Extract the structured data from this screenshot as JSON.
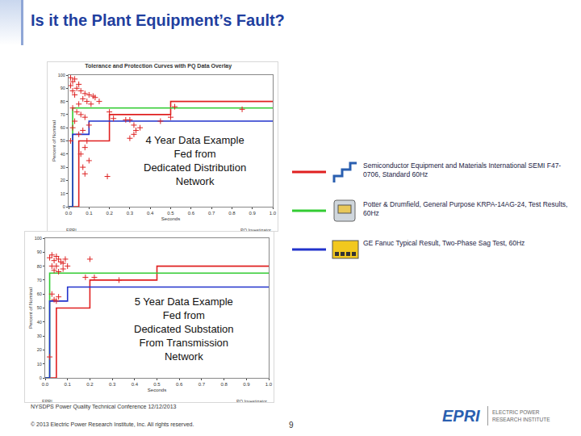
{
  "slide": {
    "title": "Is it the Plant Equipment’s Fault?",
    "footer": {
      "event": "NYSDPS Power Quality Technical Conference  12/12/2013",
      "copyright": "© 2013 Electric Power Research Institute, Inc. All rights reserved.",
      "page": "9",
      "logo": "EPRI",
      "logo_text": [
        "ELECTRIC POWER",
        "RESEARCH INSTITUTE"
      ]
    }
  },
  "chart_data": [
    {
      "type": "line",
      "title": "Tolerance and Protection Curves with PQ Data Overlay",
      "x_label": "Seconds",
      "y_label": "Percent of Nominal",
      "overlay_text": [
        "4 Year Data Example",
        "Fed from",
        "Dedicated Distribution",
        "Network"
      ],
      "footer_left": "EPRI",
      "footer_right": "PQ Investigator",
      "xlim": [
        0,
        1.0
      ],
      "xticks": [
        {
          "value": 0,
          "label": "0.0"
        },
        0.1,
        0.2,
        0.3,
        0.4,
        0.5,
        0.6,
        0.7,
        0.8,
        0.9,
        {
          "value": 1.0,
          "label": "1.0"
        }
      ],
      "ylim": [
        0,
        100
      ],
      "yticks": [
        0,
        10,
        20,
        30,
        40,
        50,
        60,
        70,
        80,
        90,
        100
      ],
      "grid": false,
      "series": [
        {
          "name": "Semiconductor Equipment and Materials International SEMI F47-0706, Standard 60Hz",
          "color": "#e02020",
          "type": "line",
          "x": [
            0,
            0.05,
            0.05,
            0.2,
            0.2,
            0.5,
            0.5,
            1.0
          ],
          "values": [
            0,
            0,
            50,
            50,
            70,
            70,
            80,
            80
          ]
        },
        {
          "name": "Potter & Drumfield, General Purpose KRPA-14AG-24, Test Results, 60Hz",
          "color": "#33cc33",
          "type": "line",
          "x": [
            0,
            0.02,
            0.02,
            1.0
          ],
          "values": [
            0,
            0,
            75,
            75
          ]
        },
        {
          "name": "GE Fanuc Typical Result, Two-Phase Sag Test, 60Hz",
          "color": "#2233cc",
          "type": "line",
          "x": [
            0,
            0.02,
            0.02,
            0.1,
            0.1,
            1.0
          ],
          "values": [
            0,
            0,
            55,
            55,
            65,
            65
          ]
        },
        {
          "color": "#dd2222",
          "type": "scatter",
          "marker": "plus",
          "x": [
            0.01,
            0.02,
            0.03,
            0.01,
            0.02,
            0.04,
            0.05,
            0.03,
            0.06,
            0.08,
            0.1,
            0.12,
            0.07,
            0.09,
            0.05,
            0.11,
            0.13,
            0.15,
            0.02,
            0.04,
            0.06,
            0.08,
            0.03,
            0.1,
            0.07,
            0.05,
            0.09,
            0.08,
            0.06,
            0.1,
            0.07,
            0.08,
            0.2,
            0.22,
            0.28,
            0.32,
            0.35,
            0.33,
            0.3,
            0.45,
            0.5,
            0.52,
            0.85,
            0.3,
            0.32,
            0.02,
            0.01,
            0.19
          ],
          "values": [
            98,
            95,
            97,
            92,
            88,
            90,
            93,
            85,
            88,
            86,
            85,
            84,
            82,
            80,
            78,
            78,
            83,
            80,
            75,
            72,
            70,
            68,
            65,
            62,
            58,
            55,
            50,
            45,
            40,
            35,
            30,
            25,
            72,
            67,
            66,
            62,
            60,
            58,
            66,
            65,
            68,
            76,
            74,
            52,
            55,
            60,
            50,
            23
          ]
        }
      ]
    },
    {
      "type": "line",
      "x_label": "Seconds",
      "y_label": "Percent of Nominal",
      "overlay_text": [
        "5 Year Data Example",
        "Fed from",
        "Dedicated Substation",
        "From Transmission",
        "Network"
      ],
      "footer_left": "EPRI",
      "footer_right": "PQ Investigator",
      "xlim": [
        0,
        1.0
      ],
      "xticks": [
        {
          "value": 0,
          "label": "0.0"
        },
        0.1,
        0.2,
        0.3,
        0.4,
        0.5,
        0.6,
        0.7,
        0.8,
        0.9,
        {
          "value": 1.0,
          "label": "1.0"
        }
      ],
      "ylim": [
        0,
        100
      ],
      "yticks": [
        0,
        10,
        20,
        30,
        40,
        50,
        60,
        70,
        80,
        90,
        100
      ],
      "grid": false,
      "series": [
        {
          "color": "#e02020",
          "type": "line",
          "x": [
            0,
            0.05,
            0.05,
            0.2,
            0.2,
            0.5,
            0.5,
            1.0
          ],
          "values": [
            0,
            0,
            50,
            50,
            70,
            70,
            80,
            80
          ]
        },
        {
          "color": "#33cc33",
          "type": "line",
          "x": [
            0,
            0.02,
            0.02,
            1.0
          ],
          "values": [
            0,
            0,
            75,
            75
          ]
        },
        {
          "color": "#2233cc",
          "type": "line",
          "x": [
            0,
            0.02,
            0.02,
            0.1,
            0.1,
            1.0
          ],
          "values": [
            0,
            0,
            55,
            55,
            65,
            65
          ]
        },
        {
          "color": "#dd2222",
          "type": "scatter",
          "marker": "plus",
          "x": [
            0.02,
            0.03,
            0.04,
            0.05,
            0.06,
            0.07,
            0.05,
            0.08,
            0.03,
            0.09,
            0.1,
            0.04,
            0.06,
            0.08,
            0.2,
            0.18,
            0.22,
            0.33,
            0.03,
            0.04,
            0.05,
            0.06,
            0.02
          ],
          "values": [
            86,
            88,
            84,
            87,
            85,
            83,
            80,
            82,
            80,
            85,
            80,
            77,
            76,
            78,
            85,
            72,
            72,
            70,
            60,
            56,
            55,
            58,
            15
          ]
        }
      ]
    }
  ]
}
